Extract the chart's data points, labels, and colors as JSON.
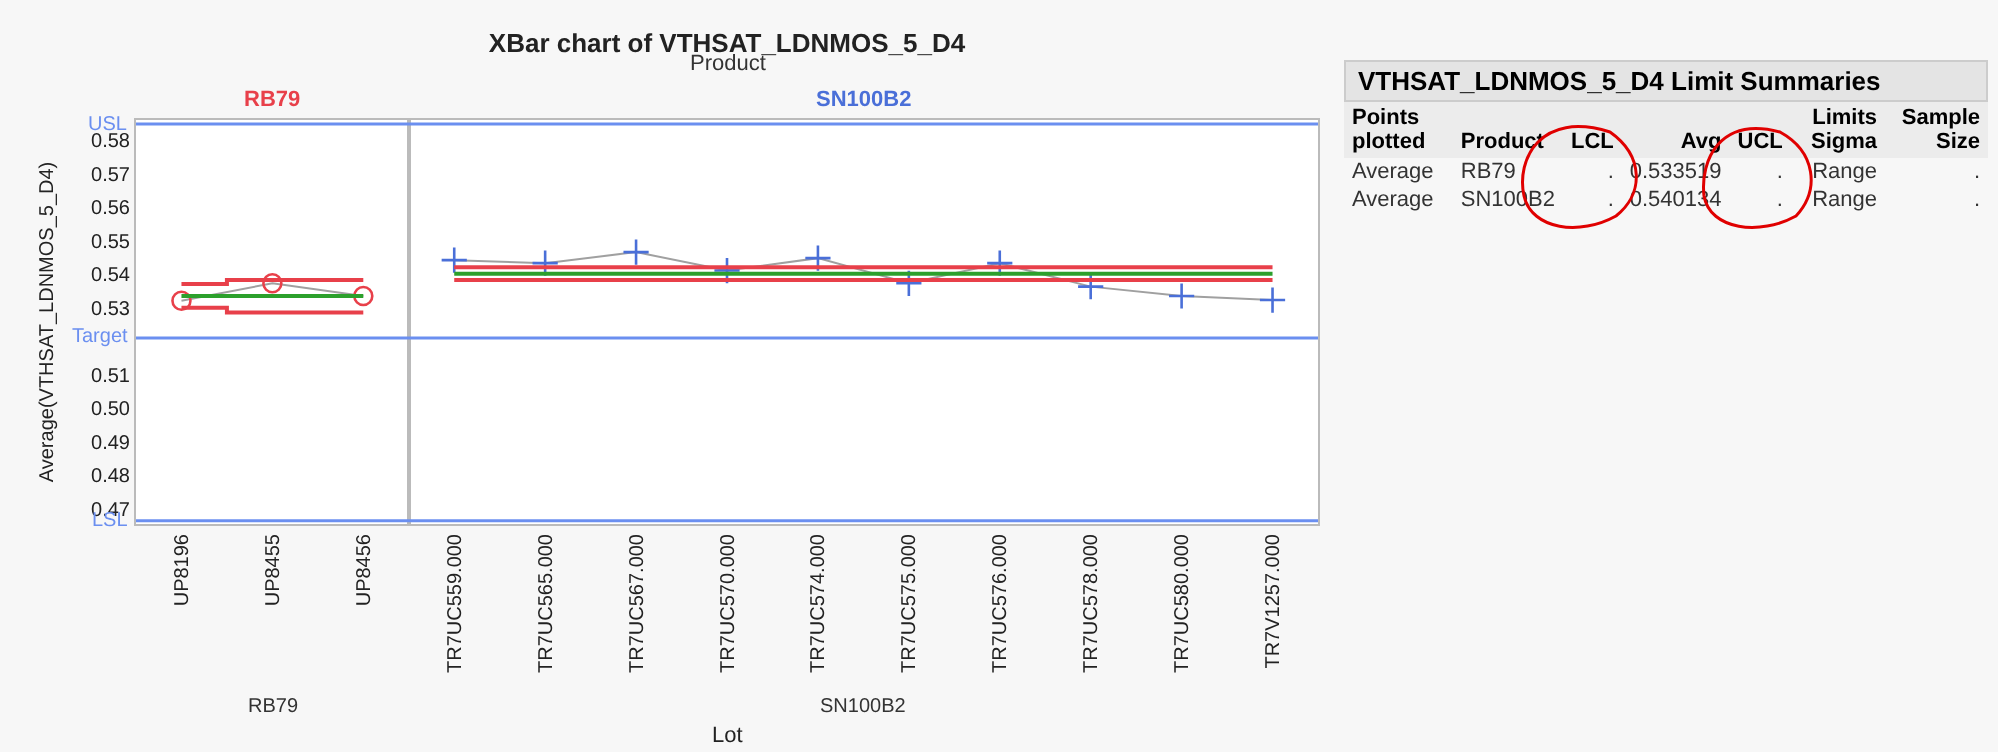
{
  "chart_data": [
    {
      "type": "line",
      "title": "XBar chart of VTHSAT_LDNMOS_5_D4",
      "xlabel": "Lot",
      "ylabel": "Average(VTHSAT_LDNMOS_5_D4)",
      "annotations": [
        "Product"
      ],
      "categories": [
        "UP8196",
        "UP8455",
        "UP8456",
        "TR7UC559.000",
        "TR7UC565.000",
        "TR7UC567.000",
        "TR7UC570.000",
        "TR7UC574.000",
        "TR7UC575.000",
        "TR7UC576.000",
        "TR7UC578.000",
        "TR7UC580.000",
        "TR7V1257.000"
      ],
      "series": [
        {
          "name": "RB79",
          "type": "line",
          "marker": "circle",
          "color": "#a0a0a0",
          "colors": [
            "#e8404a",
            "#e8404a",
            "#e8404a",
            null,
            null,
            null,
            null,
            null,
            null,
            null,
            null,
            null,
            null
          ],
          "values": [
            0.5321,
            0.5373,
            0.5335,
            null,
            null,
            null,
            null,
            null,
            null,
            null,
            null,
            null,
            null
          ]
        },
        {
          "name": "SN100B2",
          "type": "line",
          "marker": "cross",
          "color": "#a0a0a0",
          "colors": [
            null,
            null,
            null,
            "#4a6fd8",
            "#4a6fd8",
            "#4a6fd8",
            "#4a6fd8",
            "#4a6fd8",
            "#4a6fd8",
            "#4a6fd8",
            "#4a6fd8",
            "#4a6fd8",
            "#4a6fd8"
          ],
          "values": [
            null,
            null,
            null,
            0.5442,
            0.5433,
            0.5466,
            0.5411,
            0.5448,
            0.5373,
            0.5433,
            0.5363,
            0.5335,
            0.5323
          ]
        },
        {
          "type": "step",
          "marker": "none",
          "color": "#e8404a",
          "values": [
            0.5371,
            0.5383,
            0.5383,
            null,
            null,
            null,
            null,
            null,
            null,
            null,
            null,
            null,
            null
          ]
        },
        {
          "type": "step",
          "marker": "none",
          "color": "#2ca02c",
          "values": [
            0.533519,
            0.533519,
            0.533519,
            null,
            null,
            null,
            null,
            null,
            null,
            null,
            null,
            null,
            null
          ]
        },
        {
          "type": "step",
          "marker": "none",
          "color": "#e8404a",
          "values": [
            0.53,
            0.5286,
            0.5286,
            null,
            null,
            null,
            null,
            null,
            null,
            null,
            null,
            null,
            null
          ]
        },
        {
          "type": "step",
          "marker": "none",
          "color": "#e8404a",
          "values": [
            null,
            null,
            null,
            0.5421,
            0.5421,
            0.5421,
            0.5421,
            0.5421,
            0.5421,
            0.5421,
            0.5421,
            0.5421,
            0.5421
          ]
        },
        {
          "type": "step",
          "marker": "none",
          "color": "#2ca02c",
          "values": [
            null,
            null,
            null,
            0.540134,
            0.540134,
            0.540134,
            0.540134,
            0.540134,
            0.540134,
            0.540134,
            0.540134,
            0.540134,
            0.540134
          ]
        },
        {
          "type": "step",
          "marker": "none",
          "color": "#e8404a",
          "values": [
            null,
            null,
            null,
            0.5383,
            0.5383,
            0.5383,
            0.5383,
            0.5383,
            0.5383,
            0.5383,
            0.5383,
            0.5383,
            0.5383
          ]
        }
      ],
      "ref_lines": [
        {
          "axis": "y",
          "value": 0.5848,
          "label": "USL",
          "color": "#6b8ff0"
        },
        {
          "axis": "y",
          "value": 0.521,
          "label": "Target",
          "color": "#6b8ff0"
        },
        {
          "axis": "y",
          "value": 0.4665,
          "label": "LSL",
          "color": "#6b8ff0"
        }
      ],
      "ylim": [
        0.4655,
        0.586
      ],
      "yticks": [
        0.47,
        0.48,
        0.49,
        {
          "value": 0.5,
          "label": "0.50"
        },
        0.51,
        0.53,
        0.54,
        0.55,
        0.56,
        0.57,
        0.58
      ],
      "grid": false,
      "legend": false
    },
    {
      "type": "other",
      "title": "VTHSAT_LDNMOS_5_D4 Limit Summaries",
      "categories": [
        "Points plotted",
        "Product",
        "LCL",
        "Avg",
        "UCL",
        "Limits Sigma",
        "Sample Size"
      ],
      "annotations": [
        "Average",
        "RB79",
        ".",
        "0.533519",
        ".",
        "Range",
        ".",
        "Average",
        "SN100B2",
        ".",
        "0.540134",
        ".",
        "Range",
        "."
      ]
    }
  ]
}
